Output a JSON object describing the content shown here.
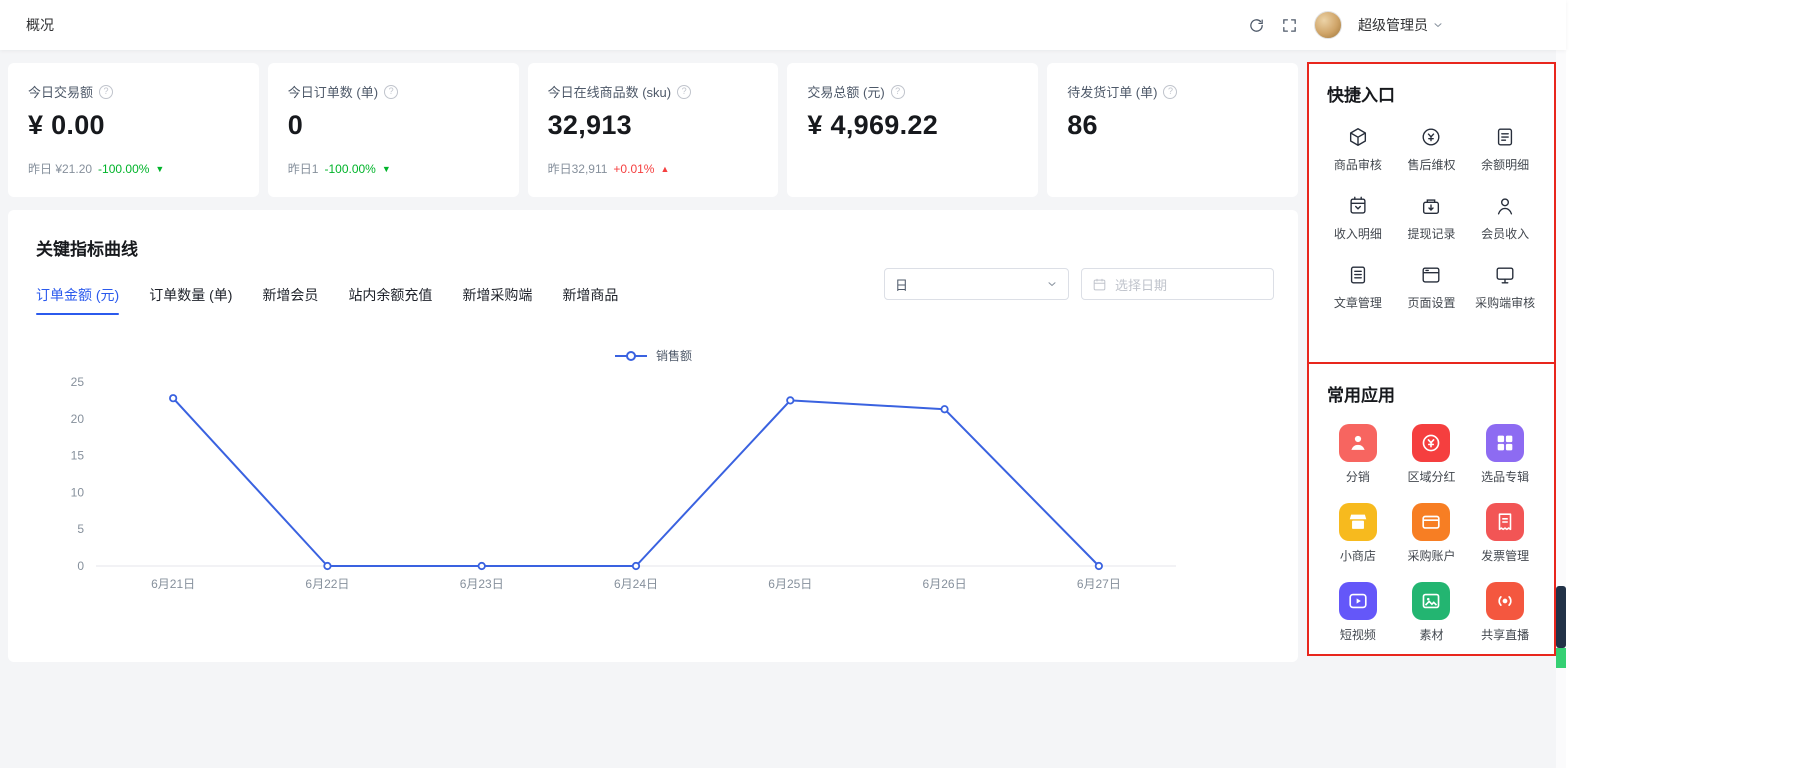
{
  "topbar": {
    "breadcrumb": "概况",
    "user": "超级管理员"
  },
  "colors": {
    "primary": "#2b5aed",
    "chart_line": "#3a62e0",
    "up_red": "#f53f3f",
    "down_green": "#00b42a",
    "annotation_red": "#e8261d"
  },
  "misc": {
    "info_glyph": "?",
    "down_arrow": "▼",
    "up_arrow": "▲"
  },
  "stats": [
    {
      "label": "今日交易额",
      "value": "¥ 0.00",
      "sub_prefix": "昨日 ¥21.20",
      "change": "-100.00%",
      "direction": "down"
    },
    {
      "label": "今日订单数 (单)",
      "value": "0",
      "sub_prefix": "昨日1",
      "change": "-100.00%",
      "direction": "down"
    },
    {
      "label": "今日在线商品数 (sku)",
      "value": "32,913",
      "sub_prefix": "昨日32,911",
      "change": "+0.01%",
      "direction": "up"
    },
    {
      "label": "交易总额 (元)",
      "value": "¥ 4,969.22"
    },
    {
      "label": "待发货订单 (单)",
      "value": "86"
    }
  ],
  "chart_panel": {
    "title": "关键指标曲线",
    "tabs": [
      "订单金额 (元)",
      "订单数量 (单)",
      "新增会员",
      "站内余额充值",
      "新增采购端",
      "新增商品"
    ],
    "active_tab": 0,
    "period_select": "日",
    "date_placeholder": "选择日期"
  },
  "chart_data": {
    "type": "line",
    "title": "",
    "legend": [
      "销售额"
    ],
    "legend_position": "top-center",
    "grid": false,
    "categories": [
      "6月21日",
      "6月22日",
      "6月23日",
      "6月24日",
      "6月25日",
      "6月26日",
      "6月27日"
    ],
    "series": [
      {
        "name": "销售额",
        "values": [
          22.8,
          0,
          0,
          0,
          22.5,
          21.3,
          0
        ]
      }
    ],
    "ylim": [
      0,
      25
    ],
    "yticks": [
      0,
      5,
      10,
      15,
      20,
      25
    ],
    "line_color": "#3a62e0"
  },
  "quick_entry": {
    "title": "快捷入口",
    "items": [
      {
        "label": "商品审核",
        "icon": "product-audit-icon",
        "shape": "cube"
      },
      {
        "label": "售后维权",
        "icon": "aftersale-rights-icon",
        "shape": "aftersale"
      },
      {
        "label": "余额明细",
        "icon": "balance-detail-icon",
        "shape": "doc"
      },
      {
        "label": "收入明细",
        "icon": "income-detail-icon",
        "shape": "income"
      },
      {
        "label": "提现记录",
        "icon": "withdraw-record-icon",
        "shape": "withdraw"
      },
      {
        "label": "会员收入",
        "icon": "member-income-icon",
        "shape": "member"
      },
      {
        "label": "文章管理",
        "icon": "article-manage-icon",
        "shape": "article"
      },
      {
        "label": "页面设置",
        "icon": "page-setting-icon",
        "shape": "page"
      },
      {
        "label": "采购端审核",
        "icon": "purchase-audit-icon",
        "shape": "monitor"
      }
    ]
  },
  "common_apps": {
    "title": "常用应用",
    "items": [
      {
        "label": "分销",
        "icon": "distribution-icon",
        "shape": "person",
        "color": "#f76560"
      },
      {
        "label": "区域分红",
        "icon": "region-dividend-icon",
        "shape": "coin",
        "color": "#f53f3f"
      },
      {
        "label": "选品专辑",
        "icon": "album-icon",
        "shape": "album",
        "color": "#8d6bf2"
      },
      {
        "label": "小商店",
        "icon": "mini-shop-icon",
        "shape": "shop",
        "color": "#f7ba1e"
      },
      {
        "label": "采购账户",
        "icon": "purchase-account-icon",
        "shape": "card",
        "color": "#f77e23"
      },
      {
        "label": "发票管理",
        "icon": "invoice-manage-icon",
        "shape": "invoice",
        "color": "#f25555"
      },
      {
        "label": "短视频",
        "icon": "short-video-icon",
        "shape": "play",
        "color": "#6457f9"
      },
      {
        "label": "素材",
        "icon": "material-icon",
        "shape": "image",
        "color": "#23b571"
      },
      {
        "label": "共享直播",
        "icon": "live-share-icon",
        "shape": "live",
        "color": "#f4573f"
      }
    ]
  }
}
